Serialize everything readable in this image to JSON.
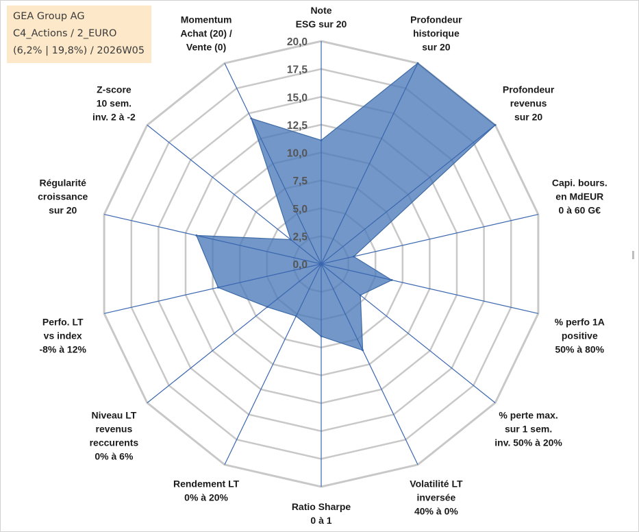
{
  "info_box": {
    "line1": "GEA Group AG",
    "line2": "C4_Actions / 2_EURO",
    "line3": "(6,2% | 19,8%) / 2026W05"
  },
  "colors": {
    "area_fill": "#4a7ab8",
    "area_stroke": "#3d6aa5",
    "spoke": "#3a66b0",
    "grid": "#c8c8c8",
    "info_bg": "#fde9c9"
  },
  "chart_data": {
    "type": "radar",
    "title": "",
    "range": [
      0,
      20
    ],
    "tick_values": [
      0,
      2.5,
      5,
      7.5,
      10,
      12.5,
      15,
      17.5,
      20
    ],
    "tick_labels": [
      "0,0",
      "2,5",
      "5,0",
      "7,5",
      "10,0",
      "12,5",
      "15,0",
      "17,5",
      "20,0"
    ],
    "axes": [
      {
        "label": [
          "Note",
          "ESG sur 20"
        ],
        "value": 11.1
      },
      {
        "label": [
          "Profondeur",
          "historique",
          "sur 20"
        ],
        "value": 20
      },
      {
        "label": [
          "Profondeur",
          "revenus",
          "sur 20"
        ],
        "value": 20
      },
      {
        "label": [
          "Capi. bours.",
          "en MdEUR",
          "0 à 60 G€"
        ],
        "value": 3.0
      },
      {
        "label": [
          "% perfo 1A",
          "positive",
          "50% à 80%"
        ],
        "value": 6.5
      },
      {
        "label": [
          "% perte max.",
          "sur 1 sem.",
          "inv. 50% à 20%"
        ],
        "value": 4.5
      },
      {
        "label": [
          "Volatilité LT",
          "inversée",
          "40% à 0%"
        ],
        "value": 8.6
      },
      {
        "label": [
          "Ratio Sharpe",
          "0 à 1"
        ],
        "value": 6.5
      },
      {
        "label": [
          "Rendement LT",
          "0% à 20%"
        ],
        "value": 5.2
      },
      {
        "label": [
          "Niveau LT",
          "revenus",
          "reccurents",
          "0% à 6%"
        ],
        "value": 6.2
      },
      {
        "label": [
          "Perfo. LT",
          "vs index",
          "-8% à 12%"
        ],
        "value": 9.5
      },
      {
        "label": [
          "Régularité",
          "croissance",
          "sur 20"
        ],
        "value": 11.5
      },
      {
        "label": [
          "Z-score",
          "10 sem.",
          "inv. 2 à -2"
        ],
        "value": 3.5
      },
      {
        "label": [
          "Momentum",
          "Achat (20) /",
          "Vente (0)"
        ],
        "value": 14.5
      }
    ]
  }
}
